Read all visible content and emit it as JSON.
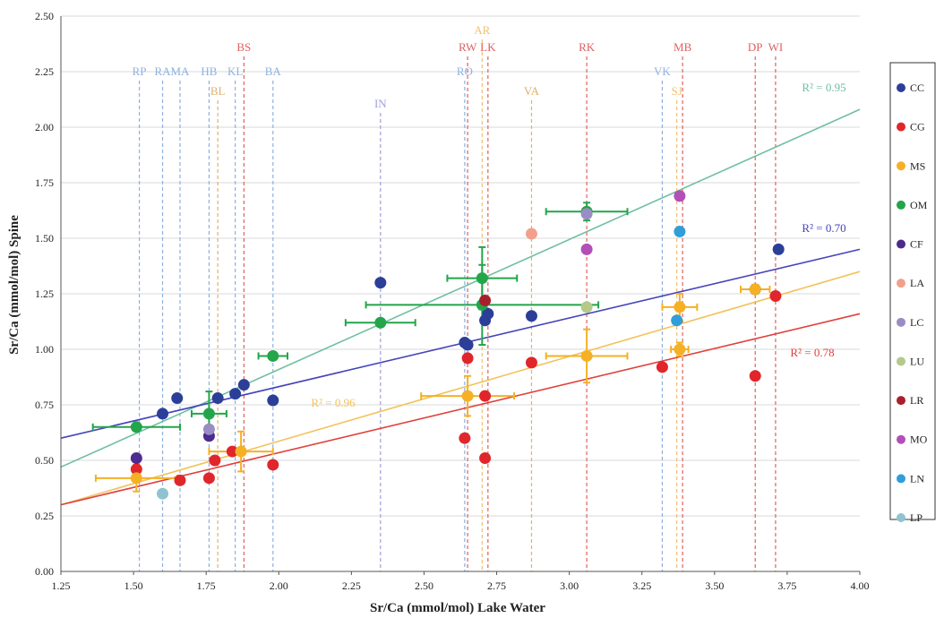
{
  "chart_data": {
    "type": "scatter",
    "title": "",
    "xlabel": "Sr/Ca (mmol/mol) Lake Water",
    "ylabel": "Sr/Ca (mmol/mol) Spine",
    "xlim": [
      1.25,
      4.0
    ],
    "ylim": [
      0.0,
      2.5
    ],
    "xticks": [
      "1.25",
      "1.50",
      "1.75",
      "2.00",
      "2.25",
      "2.50",
      "2.75",
      "3.00",
      "3.25",
      "3.50",
      "3.75",
      "4.00"
    ],
    "yticks": [
      "0.00",
      "0.25",
      "0.50",
      "0.75",
      "1.00",
      "1.25",
      "1.50",
      "1.75",
      "2.00",
      "2.25",
      "2.50"
    ],
    "grid": "horizontal",
    "legend_position": "right",
    "series": [
      {
        "name": "CC",
        "color": "#2b3f99",
        "points": [
          [
            1.6,
            0.71
          ],
          [
            1.65,
            0.78
          ],
          [
            1.79,
            0.78
          ],
          [
            1.85,
            0.8
          ],
          [
            1.88,
            0.84
          ],
          [
            1.98,
            0.77
          ],
          [
            2.35,
            1.3
          ],
          [
            2.64,
            1.03
          ],
          [
            2.65,
            1.02
          ],
          [
            2.71,
            1.13
          ],
          [
            2.72,
            1.16
          ],
          [
            2.87,
            1.15
          ],
          [
            3.64,
            1.27
          ],
          [
            3.72,
            1.45
          ]
        ]
      },
      {
        "name": "CG",
        "color": "#e0262b",
        "points": [
          [
            1.51,
            0.46
          ],
          [
            1.66,
            0.41
          ],
          [
            1.76,
            0.42
          ],
          [
            1.78,
            0.5
          ],
          [
            1.84,
            0.54
          ],
          [
            1.98,
            0.48
          ],
          [
            2.64,
            0.6
          ],
          [
            2.65,
            0.96
          ],
          [
            2.71,
            0.79
          ],
          [
            2.71,
            0.51
          ],
          [
            2.87,
            0.94
          ],
          [
            3.32,
            0.92
          ],
          [
            3.64,
            0.88
          ],
          [
            3.71,
            1.24
          ]
        ]
      },
      {
        "name": "MS",
        "color": "#f5b025",
        "points": [
          [
            1.51,
            0.42
          ],
          [
            1.87,
            0.54
          ],
          [
            2.65,
            0.79
          ],
          [
            3.06,
            0.97
          ],
          [
            3.38,
            1.0
          ],
          [
            3.38,
            1.19
          ],
          [
            3.64,
            1.27
          ]
        ]
      },
      {
        "name": "OM",
        "color": "#23a54a",
        "points": [
          [
            1.51,
            0.65
          ],
          [
            1.76,
            0.71
          ],
          [
            1.98,
            0.97
          ],
          [
            2.35,
            1.12
          ],
          [
            2.7,
            1.2
          ],
          [
            2.7,
            1.32
          ],
          [
            3.06,
            1.62
          ]
        ]
      },
      {
        "name": "CF",
        "color": "#4d2a8f",
        "points": [
          [
            1.51,
            0.51
          ],
          [
            1.76,
            0.61
          ]
        ]
      },
      {
        "name": "LA",
        "color": "#f2a08c",
        "points": [
          [
            2.87,
            1.52
          ]
        ]
      },
      {
        "name": "LC",
        "color": "#9a8cc4",
        "points": [
          [
            1.76,
            0.64
          ],
          [
            3.06,
            1.61
          ]
        ]
      },
      {
        "name": "LU",
        "color": "#b5c98a",
        "points": [
          [
            3.06,
            1.19
          ]
        ]
      },
      {
        "name": "LR",
        "color": "#a8202b",
        "points": [
          [
            2.71,
            1.22
          ]
        ]
      },
      {
        "name": "MO",
        "color": "#b34fb8",
        "points": [
          [
            3.06,
            1.45
          ],
          [
            3.38,
            1.69
          ]
        ]
      },
      {
        "name": "LN",
        "color": "#2f9fd9",
        "points": [
          [
            3.38,
            1.53
          ],
          [
            3.37,
            1.13
          ]
        ]
      },
      {
        "name": "LP",
        "color": "#8fc3cf",
        "points": [
          [
            1.6,
            0.35
          ]
        ]
      }
    ],
    "error_bars": [
      {
        "series": "OM",
        "x": 1.51,
        "y": 0.65,
        "xerr": 0.15,
        "yerr": 0
      },
      {
        "series": "OM",
        "x": 1.76,
        "y": 0.71,
        "xerr": 0.06,
        "yerr": 0.1
      },
      {
        "series": "OM",
        "x": 1.98,
        "y": 0.97,
        "xerr": 0.05,
        "yerr": 0
      },
      {
        "series": "OM",
        "x": 2.35,
        "y": 1.12,
        "xerr": 0.12,
        "yerr": 0
      },
      {
        "series": "OM",
        "x": 2.7,
        "y": 1.2,
        "xerr": 0.4,
        "yerr": 0.18
      },
      {
        "series": "OM",
        "x": 2.7,
        "y": 1.32,
        "xerr": 0.12,
        "yerr": 0.14
      },
      {
        "series": "OM",
        "x": 3.06,
        "y": 1.62,
        "xerr": 0.14,
        "yerr": 0.04
      },
      {
        "series": "MS",
        "x": 1.51,
        "y": 0.42,
        "xerr": 0.14,
        "yerr": 0.06
      },
      {
        "series": "MS",
        "x": 1.87,
        "y": 0.54,
        "xerr": 0.11,
        "yerr": 0.09
      },
      {
        "series": "MS",
        "x": 2.65,
        "y": 0.79,
        "xerr": 0.16,
        "yerr": 0.09
      },
      {
        "series": "MS",
        "x": 3.06,
        "y": 0.97,
        "xerr": 0.14,
        "yerr": 0.12
      },
      {
        "series": "MS",
        "x": 3.38,
        "y": 1.0,
        "xerr": 0.03,
        "yerr": 0.03
      },
      {
        "series": "MS",
        "x": 3.38,
        "y": 1.19,
        "xerr": 0.06,
        "yerr": 0.06
      },
      {
        "series": "MS",
        "x": 3.64,
        "y": 1.27,
        "xerr": 0.05,
        "yerr": 0.02
      }
    ],
    "trendlines": [
      {
        "color": "#6fbfa0",
        "x": [
          1.25,
          4.0
        ],
        "y": [
          0.47,
          2.08
        ],
        "label": "R² = 0.95"
      },
      {
        "color": "#4444bb",
        "x": [
          1.25,
          4.0
        ],
        "y": [
          0.6,
          1.45
        ],
        "label": "R² = 0.70"
      },
      {
        "color": "#f2c25a",
        "x": [
          1.25,
          4.0
        ],
        "y": [
          0.3,
          1.35
        ],
        "label": "R² = 0.96"
      },
      {
        "color": "#e0403c",
        "x": [
          1.25,
          4.0
        ],
        "y": [
          0.3,
          1.16
        ],
        "label": "R² = 0.78"
      }
    ],
    "lake_lines": [
      {
        "x": 1.52,
        "label": "RP",
        "color": "#8fb0e0"
      },
      {
        "x": 1.6,
        "label": "RA",
        "color": "#8fb0e0"
      },
      {
        "x": 1.66,
        "label": "MA",
        "color": "#8fb0e0"
      },
      {
        "x": 1.76,
        "label": "HB",
        "color": "#8fb0e0"
      },
      {
        "x": 1.79,
        "label": "BL",
        "color": "#e0b070"
      },
      {
        "x": 1.85,
        "label": "KL",
        "color": "#8fb0e0"
      },
      {
        "x": 1.88,
        "label": "BS",
        "color": "#e06060"
      },
      {
        "x": 1.98,
        "label": "BA",
        "color": "#8fb0e0"
      },
      {
        "x": 2.35,
        "label": "IN",
        "color": "#a0a0d8"
      },
      {
        "x": 2.64,
        "label": "RO",
        "color": "#8fb0e0"
      },
      {
        "x": 2.65,
        "label": "RW",
        "color": "#e06060"
      },
      {
        "x": 2.7,
        "label": "AR",
        "color": "#f0c070"
      },
      {
        "x": 2.72,
        "label": "LK",
        "color": "#e06060"
      },
      {
        "x": 2.87,
        "label": "VA",
        "color": "#e0b070"
      },
      {
        "x": 3.06,
        "label": "RK",
        "color": "#e06060"
      },
      {
        "x": 3.32,
        "label": "VK",
        "color": "#8fb0e0"
      },
      {
        "x": 3.37,
        "label": "SJ",
        "color": "#f0c070"
      },
      {
        "x": 3.39,
        "label": "MB",
        "color": "#e06060"
      },
      {
        "x": 3.64,
        "label": "DP",
        "color": "#e06060"
      },
      {
        "x": 3.71,
        "label": "WI",
        "color": "#e06060"
      }
    ]
  }
}
